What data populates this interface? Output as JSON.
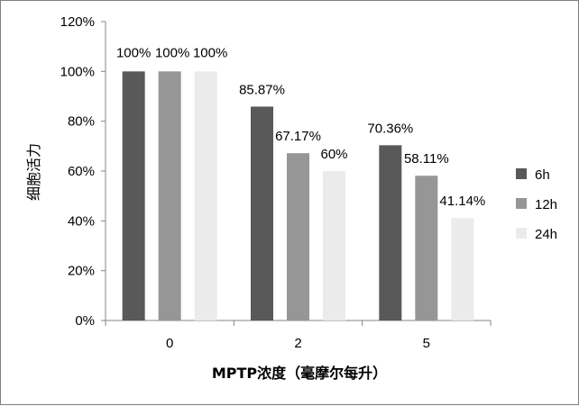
{
  "chart_data": {
    "type": "bar",
    "categories": [
      "0",
      "2",
      "5"
    ],
    "series": [
      {
        "name": "6h",
        "values": [
          100,
          85.87,
          70.36
        ],
        "labels": [
          "100%",
          "85.87%",
          "70.36%"
        ],
        "color": "#595959"
      },
      {
        "name": "12h",
        "values": [
          100,
          67.17,
          58.11
        ],
        "labels": [
          "100%",
          "67.17%",
          "58.11%"
        ],
        "color": "#969696"
      },
      {
        "name": "24h",
        "values": [
          100,
          60,
          41.14
        ],
        "labels": [
          "100%",
          "60%",
          "41.14%"
        ],
        "color": "#ebebeb"
      }
    ],
    "xlabel": "MPTP浓度（毫摩尔每升）",
    "ylabel": "细胞活力",
    "ylim": [
      0,
      120
    ],
    "yticks": [
      "0%",
      "20%",
      "40%",
      "60%",
      "80%",
      "100%",
      "120%"
    ],
    "grid": false,
    "legend": "right"
  }
}
